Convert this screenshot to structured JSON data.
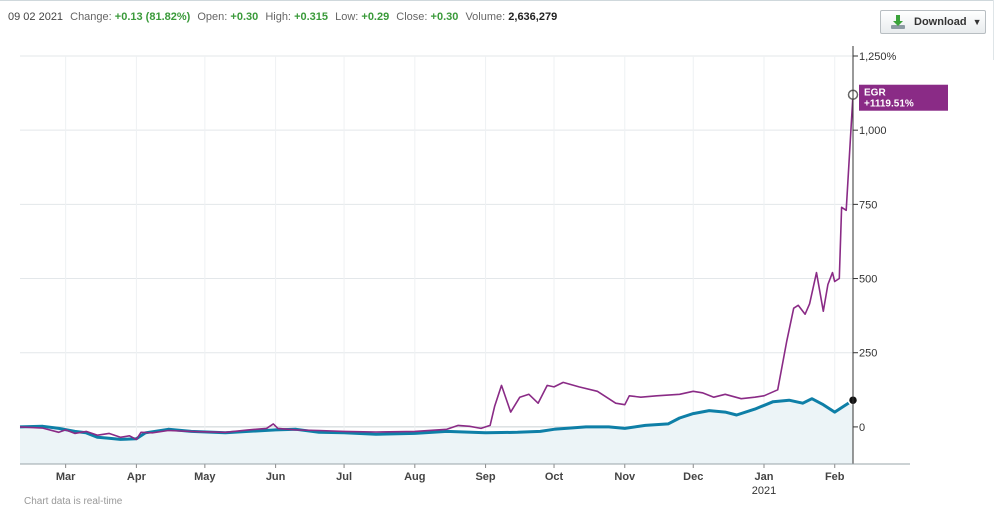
{
  "header": {
    "date": "09 02 2021",
    "change_label": "Change:",
    "change_value": "+0.13 (81.82%)",
    "open_label": "Open:",
    "open_value": "+0.30",
    "high_label": "High:",
    "high_value": "+0.315",
    "low_label": "Low:",
    "low_value": "+0.29",
    "close_label": "Close:",
    "close_value": "+0.30",
    "volume_label": "Volume:",
    "volume_value": "2,636,279"
  },
  "download_label": "Download",
  "download_icon": "download-arrow-icon",
  "footnote": "Chart data is real-time",
  "colors": {
    "egr": "#8a2b86",
    "benchmark": "#0e7fa7",
    "area": "#ecf4f7",
    "up": "#3a9a3a"
  },
  "chart_data": {
    "type": "line",
    "y_unit": "%",
    "ylim": [
      -125,
      1250
    ],
    "y_ticks": [
      {
        "value": 1250,
        "label": "1,250%"
      },
      {
        "value": 1000,
        "label": "1,000"
      },
      {
        "value": 750,
        "label": "750"
      },
      {
        "value": 500,
        "label": "500"
      },
      {
        "value": 250,
        "label": "250"
      },
      {
        "value": 0,
        "label": "0"
      }
    ],
    "x_range": [
      "2020-02-10",
      "2021-02-09"
    ],
    "x_ticks": [
      {
        "date": "2020-03-01",
        "label": "Mar"
      },
      {
        "date": "2020-04-01",
        "label": "Apr"
      },
      {
        "date": "2020-05-01",
        "label": "May"
      },
      {
        "date": "2020-06-01",
        "label": "Jun"
      },
      {
        "date": "2020-07-01",
        "label": "Jul"
      },
      {
        "date": "2020-08-01",
        "label": "Aug"
      },
      {
        "date": "2020-09-01",
        "label": "Sep"
      },
      {
        "date": "2020-10-01",
        "label": "Oct"
      },
      {
        "date": "2020-11-01",
        "label": "Nov"
      },
      {
        "date": "2020-12-01",
        "label": "Dec"
      },
      {
        "date": "2021-01-01",
        "label": "Jan",
        "sublabel": "2021"
      },
      {
        "date": "2021-02-01",
        "label": "Feb"
      }
    ],
    "grid": true,
    "series": [
      {
        "name": "EGR",
        "end_label": "+1119.51%",
        "points": [
          [
            "2020-02-10",
            0
          ],
          [
            "2020-02-20",
            -4
          ],
          [
            "2020-02-27",
            -18
          ],
          [
            "2020-03-01",
            -10
          ],
          [
            "2020-03-05",
            -22
          ],
          [
            "2020-03-10",
            -15
          ],
          [
            "2020-03-15",
            -28
          ],
          [
            "2020-03-20",
            -22
          ],
          [
            "2020-03-25",
            -35
          ],
          [
            "2020-03-29",
            -30
          ],
          [
            "2020-04-01",
            -42
          ],
          [
            "2020-04-03",
            -18
          ],
          [
            "2020-04-08",
            -20
          ],
          [
            "2020-04-15",
            -12
          ],
          [
            "2020-04-25",
            -15
          ],
          [
            "2020-05-10",
            -18
          ],
          [
            "2020-05-20",
            -10
          ],
          [
            "2020-05-28",
            -5
          ],
          [
            "2020-05-31",
            10
          ],
          [
            "2020-06-02",
            -5
          ],
          [
            "2020-06-10",
            -10
          ],
          [
            "2020-06-20",
            -12
          ],
          [
            "2020-07-01",
            -15
          ],
          [
            "2020-07-15",
            -17
          ],
          [
            "2020-08-01",
            -15
          ],
          [
            "2020-08-15",
            -8
          ],
          [
            "2020-08-20",
            5
          ],
          [
            "2020-08-25",
            2
          ],
          [
            "2020-08-30",
            -5
          ],
          [
            "2020-09-03",
            5
          ],
          [
            "2020-09-05",
            70
          ],
          [
            "2020-09-08",
            140
          ],
          [
            "2020-09-12",
            50
          ],
          [
            "2020-09-16",
            100
          ],
          [
            "2020-09-20",
            110
          ],
          [
            "2020-09-24",
            80
          ],
          [
            "2020-09-28",
            140
          ],
          [
            "2020-10-01",
            135
          ],
          [
            "2020-10-05",
            150
          ],
          [
            "2020-10-12",
            135
          ],
          [
            "2020-10-20",
            120
          ],
          [
            "2020-10-25",
            95
          ],
          [
            "2020-10-28",
            80
          ],
          [
            "2020-11-01",
            75
          ],
          [
            "2020-11-03",
            105
          ],
          [
            "2020-11-08",
            100
          ],
          [
            "2020-11-15",
            105
          ],
          [
            "2020-11-25",
            110
          ],
          [
            "2020-12-01",
            120
          ],
          [
            "2020-12-05",
            115
          ],
          [
            "2020-12-10",
            100
          ],
          [
            "2020-12-15",
            110
          ],
          [
            "2020-12-22",
            95
          ],
          [
            "2020-12-28",
            100
          ],
          [
            "2021-01-01",
            105
          ],
          [
            "2021-01-07",
            125
          ],
          [
            "2021-01-11",
            290
          ],
          [
            "2021-01-14",
            400
          ],
          [
            "2021-01-16",
            410
          ],
          [
            "2021-01-19",
            380
          ],
          [
            "2021-01-21",
            415
          ],
          [
            "2021-01-24",
            520
          ],
          [
            "2021-01-27",
            390
          ],
          [
            "2021-01-29",
            480
          ],
          [
            "2021-01-31",
            520
          ],
          [
            "2021-02-01",
            490
          ],
          [
            "2021-02-03",
            500
          ],
          [
            "2021-02-04",
            740
          ],
          [
            "2021-02-06",
            730
          ],
          [
            "2021-02-09",
            1119.51
          ]
        ]
      },
      {
        "name": "",
        "points": [
          [
            "2020-02-10",
            0
          ],
          [
            "2020-02-20",
            2
          ],
          [
            "2020-02-27",
            -5
          ],
          [
            "2020-03-05",
            -15
          ],
          [
            "2020-03-10",
            -20
          ],
          [
            "2020-03-15",
            -35
          ],
          [
            "2020-03-20",
            -38
          ],
          [
            "2020-03-25",
            -42
          ],
          [
            "2020-04-01",
            -40
          ],
          [
            "2020-04-05",
            -20
          ],
          [
            "2020-04-15",
            -8
          ],
          [
            "2020-04-25",
            -15
          ],
          [
            "2020-05-10",
            -20
          ],
          [
            "2020-05-20",
            -15
          ],
          [
            "2020-06-01",
            -10
          ],
          [
            "2020-06-10",
            -8
          ],
          [
            "2020-06-20",
            -18
          ],
          [
            "2020-07-01",
            -20
          ],
          [
            "2020-07-15",
            -25
          ],
          [
            "2020-08-01",
            -22
          ],
          [
            "2020-08-15",
            -15
          ],
          [
            "2020-09-01",
            -20
          ],
          [
            "2020-09-15",
            -18
          ],
          [
            "2020-09-25",
            -15
          ],
          [
            "2020-10-01",
            -8
          ],
          [
            "2020-10-15",
            0
          ],
          [
            "2020-10-25",
            0
          ],
          [
            "2020-11-01",
            -5
          ],
          [
            "2020-11-10",
            5
          ],
          [
            "2020-11-20",
            10
          ],
          [
            "2020-11-25",
            30
          ],
          [
            "2020-12-01",
            45
          ],
          [
            "2020-12-08",
            55
          ],
          [
            "2020-12-15",
            50
          ],
          [
            "2020-12-20",
            40
          ],
          [
            "2020-12-28",
            60
          ],
          [
            "2021-01-05",
            85
          ],
          [
            "2021-01-12",
            90
          ],
          [
            "2021-01-18",
            80
          ],
          [
            "2021-01-22",
            95
          ],
          [
            "2021-01-27",
            75
          ],
          [
            "2021-02-01",
            50
          ],
          [
            "2021-02-05",
            70
          ],
          [
            "2021-02-09",
            90
          ]
        ]
      }
    ]
  }
}
